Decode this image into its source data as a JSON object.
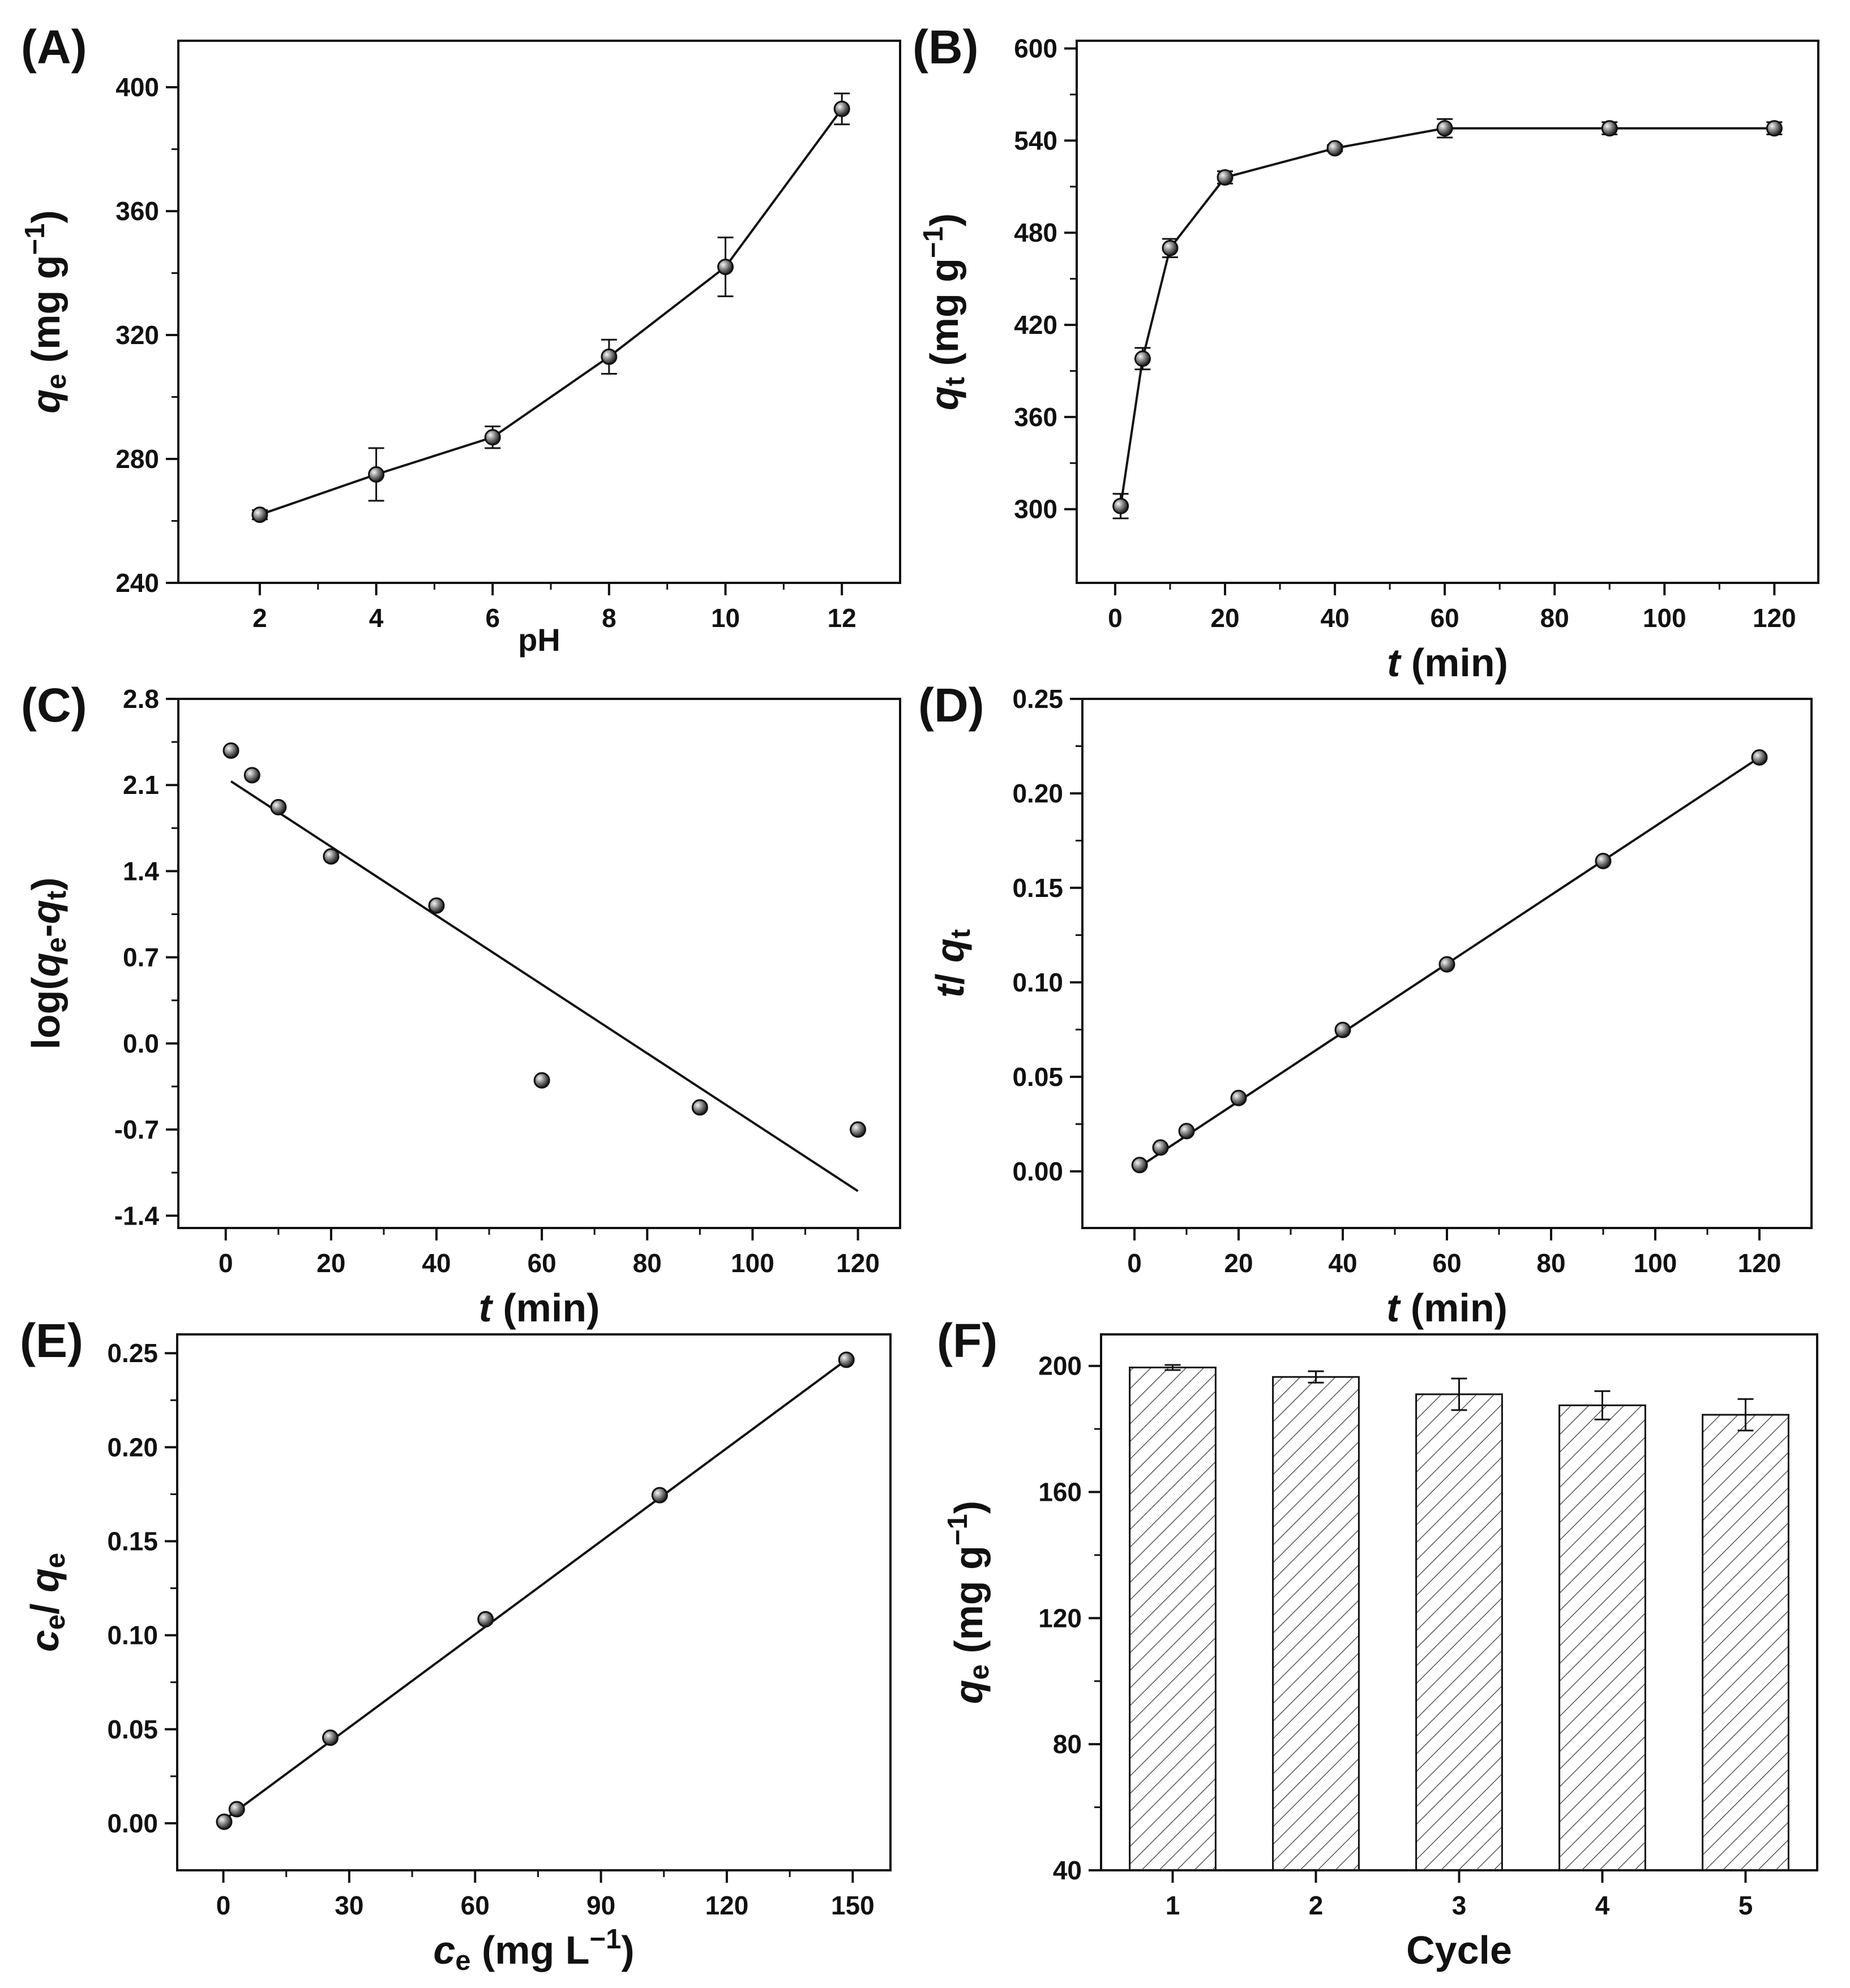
{
  "figure": {
    "background": "#ffffff",
    "ink": "#111111",
    "marker_fill": "#555555"
  },
  "chart_data": [
    {
      "panel": "(A)",
      "type": "line",
      "x": [
        2,
        4,
        6,
        8,
        10,
        12
      ],
      "y": [
        262,
        275,
        287,
        313,
        342,
        393
      ],
      "yerr": [
        1.5,
        8.5,
        3.5,
        5.5,
        9.5,
        5
      ],
      "xticks": [
        2,
        4,
        6,
        8,
        10,
        12
      ],
      "yticks": [
        240,
        280,
        320,
        360,
        400
      ],
      "xlim": [
        0.6,
        13.0
      ],
      "ylim": [
        240,
        415
      ],
      "xlabel": "pH",
      "ylabel": "qe (mg g−1)",
      "ylabel_parts": [
        {
          "t": "q",
          "i": true
        },
        {
          "t": "e",
          "sub": true
        },
        {
          "t": " (mg g"
        },
        {
          "t": "−1",
          "sup": true
        },
        {
          "t": ")"
        }
      ],
      "xlabel_parts": [
        {
          "t": "pH"
        }
      ]
    },
    {
      "panel": "(B)",
      "type": "line",
      "x": [
        1,
        5,
        10,
        20,
        40,
        60,
        90,
        120
      ],
      "y": [
        302,
        398,
        470,
        516,
        535,
        548,
        548,
        548
      ],
      "yerr": [
        8,
        7,
        6,
        4,
        2,
        6,
        4,
        4
      ],
      "xticks": [
        0,
        20,
        40,
        60,
        80,
        100,
        120
      ],
      "yticks": [
        300,
        360,
        420,
        480,
        540,
        600
      ],
      "xlim": [
        -7,
        128
      ],
      "ylim": [
        252,
        605
      ],
      "xlabel": "t (min)",
      "ylabel": "qt (mg g−1)",
      "ylabel_parts": [
        {
          "t": "q",
          "i": true
        },
        {
          "t": "t",
          "sub": true
        },
        {
          "t": " (mg g"
        },
        {
          "t": "−1",
          "sup": true
        },
        {
          "t": ")"
        }
      ],
      "xlabel_parts": [
        {
          "t": "t",
          "i": true
        },
        {
          "t": " (min)"
        }
      ]
    },
    {
      "panel": "(C)",
      "type": "scatter",
      "x": [
        1,
        5,
        10,
        20,
        40,
        60,
        90,
        120
      ],
      "y": [
        2.38,
        2.18,
        1.92,
        1.52,
        1.12,
        -0.3,
        -0.52,
        -0.7
      ],
      "fit": {
        "x": [
          1,
          120
        ],
        "y": [
          2.13,
          -1.2
        ]
      },
      "xticks": [
        0,
        20,
        40,
        60,
        80,
        100,
        120
      ],
      "yticks": [
        -1.4,
        -0.7,
        0.0,
        0.7,
        1.4,
        2.1,
        2.8
      ],
      "ytick_labels": [
        "-1.4",
        "-0.7",
        "0.0",
        "0.7",
        "1.4",
        "2.1",
        "2.8"
      ],
      "xlim": [
        -9,
        128
      ],
      "ylim": [
        -1.5,
        2.8
      ],
      "xlabel": "t (min)",
      "ylabel": "log(qe-qt)",
      "ylabel_parts": [
        {
          "t": "log("
        },
        {
          "t": "q",
          "i": true
        },
        {
          "t": "e",
          "sub": true
        },
        {
          "t": "-"
        },
        {
          "t": "q",
          "i": true
        },
        {
          "t": "t",
          "sub": true
        },
        {
          "t": ")"
        }
      ],
      "xlabel_parts": [
        {
          "t": "t",
          "i": true
        },
        {
          "t": " (min)"
        }
      ]
    },
    {
      "panel": "(D)",
      "type": "scatter",
      "x": [
        1,
        5,
        10,
        20,
        40,
        60,
        90,
        120
      ],
      "y": [
        0.0033,
        0.0126,
        0.0213,
        0.0388,
        0.0748,
        0.1095,
        0.1642,
        0.219
      ],
      "fit": {
        "x": [
          1,
          120
        ],
        "y": [
          0.0025,
          0.219
        ]
      },
      "xticks": [
        0,
        20,
        40,
        60,
        80,
        100,
        120
      ],
      "yticks": [
        0.0,
        0.05,
        0.1,
        0.15,
        0.2,
        0.25
      ],
      "ytick_labels": [
        "0.00",
        "0.05",
        "0.10",
        "0.15",
        "0.20",
        "0.25"
      ],
      "xlim": [
        -10,
        130
      ],
      "ylim": [
        -0.03,
        0.25
      ],
      "xlabel": "t (min)",
      "ylabel": "t/qt",
      "ylabel_parts": [
        {
          "t": "t",
          "i": true
        },
        {
          "t": "/ "
        },
        {
          "t": "q",
          "i": true
        },
        {
          "t": "t",
          "sub": true
        }
      ],
      "xlabel_parts": [
        {
          "t": "t",
          "i": true
        },
        {
          "t": " (min)"
        }
      ]
    },
    {
      "panel": "(E)",
      "type": "scatter",
      "x": [
        0.2,
        3.2,
        25.5,
        62.5,
        104,
        148.5
      ],
      "y": [
        0.0008,
        0.0075,
        0.0455,
        0.1085,
        0.1745,
        0.2465
      ],
      "fit": {
        "x": [
          0,
          148.5
        ],
        "y": [
          0.0015,
          0.2465
        ]
      },
      "xticks": [
        0,
        30,
        60,
        90,
        120,
        150
      ],
      "yticks": [
        0.0,
        0.05,
        0.1,
        0.15,
        0.2,
        0.25
      ],
      "ytick_labels": [
        "0.00",
        "0.05",
        "0.10",
        "0.15",
        "0.20",
        "0.25"
      ],
      "xlim": [
        -11,
        159
      ],
      "ylim": [
        -0.025,
        0.26
      ],
      "xlabel": "ce (mg L−1)",
      "ylabel": "ce/qe",
      "ylabel_parts": [
        {
          "t": "c",
          "i": true
        },
        {
          "t": "e",
          "sub": true
        },
        {
          "t": "/ "
        },
        {
          "t": "q",
          "i": true
        },
        {
          "t": "e",
          "sub": true
        }
      ],
      "xlabel_parts": [
        {
          "t": "c",
          "i": true
        },
        {
          "t": "e",
          "sub": true
        },
        {
          "t": " (mg L"
        },
        {
          "t": "−1",
          "sup": true
        },
        {
          "t": ")"
        }
      ]
    },
    {
      "panel": "(F)",
      "type": "bar",
      "categories": [
        "1",
        "2",
        "3",
        "4",
        "5"
      ],
      "values": [
        199.5,
        196.5,
        191,
        187.5,
        184.5
      ],
      "yerr": [
        0.8,
        1.8,
        5,
        4.5,
        5
      ],
      "yticks": [
        40,
        80,
        120,
        160,
        200
      ],
      "ylim": [
        40,
        210
      ],
      "xlabel": "Cycle",
      "ylabel": "qe (mg g−1)",
      "ylabel_parts": [
        {
          "t": "q",
          "i": true
        },
        {
          "t": "e",
          "sub": true
        },
        {
          "t": " (mg g"
        },
        {
          "t": "−1",
          "sup": true
        },
        {
          "t": ")"
        }
      ],
      "xlabel_parts": [
        {
          "t": "Cycle"
        }
      ]
    }
  ]
}
